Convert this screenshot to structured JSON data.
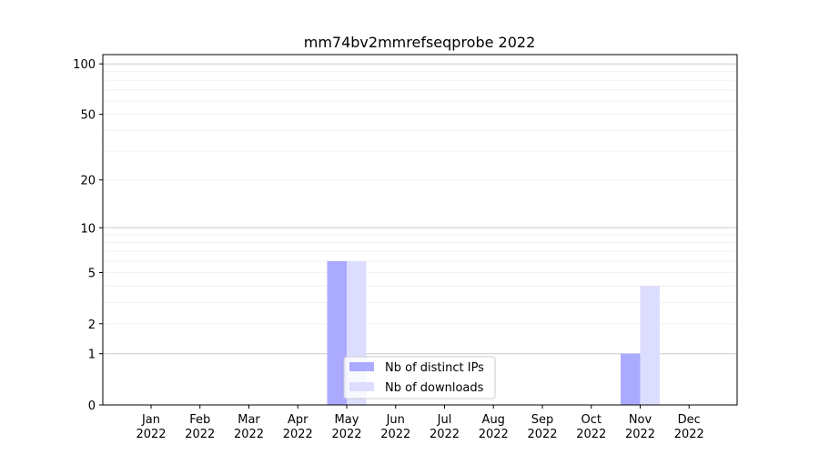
{
  "chart_data": {
    "type": "bar",
    "title": "mm74bv2mmrefseqprobe 2022",
    "xlabel": "",
    "ylabel": "",
    "yscale": "symlog",
    "ylim": [
      0,
      110
    ],
    "yticks": [
      0,
      1,
      2,
      5,
      10,
      20,
      50,
      100
    ],
    "grid": true,
    "legend_position": "lower-center",
    "categories": [
      "Jan\n2022",
      "Feb\n2022",
      "Mar\n2022",
      "Apr\n2022",
      "May\n2022",
      "Jun\n2022",
      "Jul\n2022",
      "Aug\n2022",
      "Sep\n2022",
      "Oct\n2022",
      "Nov\n2022",
      "Dec\n2022"
    ],
    "series": [
      {
        "name": "Nb of distinct IPs",
        "color": "#aaaaff",
        "values": [
          0,
          0,
          0,
          0,
          6,
          0,
          0,
          0,
          0,
          0,
          1,
          0
        ]
      },
      {
        "name": "Nb of downloads",
        "color": "#ddddff",
        "values": [
          0,
          0,
          0,
          0,
          6,
          0,
          0,
          0,
          0,
          0,
          4,
          0
        ]
      }
    ]
  }
}
